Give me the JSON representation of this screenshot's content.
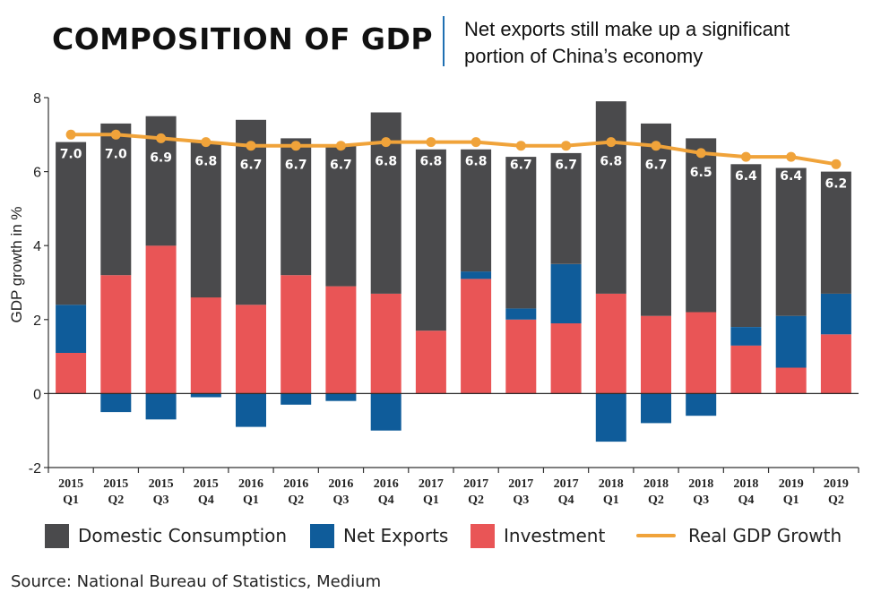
{
  "header": {
    "title": "COMPOSITION OF GDP",
    "subtitle": "Net exports still make up a significant portion of China’s economy"
  },
  "source": "Source: National Bureau of Statistics, Medium",
  "colors": {
    "domestic_consumption": "#4a4a4c",
    "net_exports": "#0f5c9a",
    "investment": "#e95556",
    "real_gdp_growth": "#f0a33a",
    "divider": "#1f6fb2"
  },
  "chart_data": {
    "type": "bar",
    "stacked": true,
    "title": "COMPOSITION OF GDP",
    "subtitle": "Net exports still make up a significant portion of China’s economy",
    "xlabel": "",
    "ylabel": "GDP growth in %",
    "ylim": [
      -2,
      8
    ],
    "yticks": [
      "-2",
      "0",
      "2",
      "4",
      "6",
      "8"
    ],
    "grid": false,
    "legend_position": "bottom",
    "categories": [
      [
        "2015",
        "Q1"
      ],
      [
        "2015",
        "Q2"
      ],
      [
        "2015",
        "Q3"
      ],
      [
        "2015",
        "Q4"
      ],
      [
        "2016",
        "Q1"
      ],
      [
        "2016",
        "Q2"
      ],
      [
        "2016",
        "Q3"
      ],
      [
        "2016",
        "Q4"
      ],
      [
        "2017",
        "Q1"
      ],
      [
        "2017",
        "Q2"
      ],
      [
        "2017",
        "Q3"
      ],
      [
        "2017",
        "Q4"
      ],
      [
        "2018",
        "Q1"
      ],
      [
        "2018",
        "Q2"
      ],
      [
        "2018",
        "Q3"
      ],
      [
        "2018",
        "Q4"
      ],
      [
        "2019",
        "Q1"
      ],
      [
        "2019",
        "Q2"
      ]
    ],
    "series": [
      {
        "name": "Investment",
        "type": "bar",
        "values": [
          1.1,
          3.2,
          4.0,
          2.6,
          2.4,
          3.2,
          2.9,
          2.7,
          1.7,
          3.1,
          2.0,
          1.9,
          2.7,
          2.1,
          2.2,
          1.3,
          0.7,
          1.6
        ]
      },
      {
        "name": "Net Exports",
        "type": "bar",
        "values": [
          1.3,
          -0.5,
          -0.7,
          -0.1,
          -0.9,
          -0.3,
          -0.2,
          -1.0,
          0.0,
          0.2,
          0.3,
          1.6,
          -1.3,
          -0.8,
          -0.6,
          0.5,
          1.4,
          1.1
        ]
      },
      {
        "name": "Domestic Consumption",
        "type": "bar",
        "values": [
          4.4,
          4.1,
          3.5,
          4.2,
          5.0,
          3.7,
          3.8,
          4.9,
          4.9,
          3.3,
          4.1,
          3.0,
          5.2,
          5.2,
          4.7,
          4.4,
          4.0,
          3.3
        ]
      },
      {
        "name": "Real GDP Growth",
        "type": "line",
        "values": [
          7.0,
          7.0,
          6.9,
          6.8,
          6.7,
          6.7,
          6.7,
          6.8,
          6.8,
          6.8,
          6.7,
          6.7,
          6.8,
          6.7,
          6.5,
          6.4,
          6.4,
          6.2
        ],
        "labels": [
          "7.0",
          "7.0",
          "6.9",
          "6.8",
          "6.7",
          "6.7",
          "6.7",
          "6.8",
          "6.8",
          "6.8",
          "6.7",
          "6.7",
          "6.8",
          "6.7",
          "6.5",
          "6.4",
          "6.4",
          "6.2"
        ]
      }
    ]
  },
  "legend": {
    "items": [
      {
        "label": "Domestic Consumption",
        "color": "#4a4a4c",
        "kind": "box"
      },
      {
        "label": "Net Exports",
        "color": "#0f5c9a",
        "kind": "box"
      },
      {
        "label": "Investment",
        "color": "#e95556",
        "kind": "box"
      },
      {
        "label": "Real GDP Growth",
        "color": "#f0a33a",
        "kind": "line"
      }
    ]
  }
}
